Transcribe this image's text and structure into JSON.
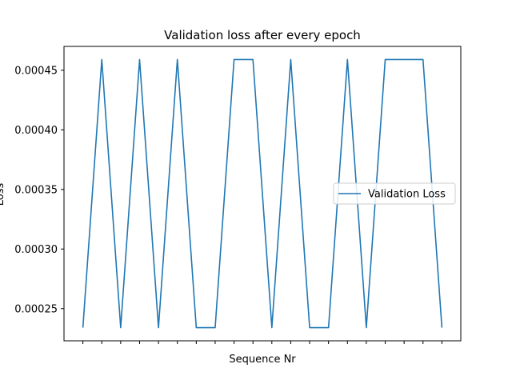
{
  "chart_data": {
    "type": "line",
    "title": "Validation loss after every epoch",
    "xlabel": "Sequence Nr",
    "ylabel": "Loss",
    "x": [
      0,
      1,
      2,
      3,
      4,
      5,
      6,
      7,
      8,
      9,
      10,
      11,
      12,
      13,
      14,
      15,
      16,
      17,
      18,
      19
    ],
    "series": [
      {
        "name": "Validation Loss",
        "color": "#1f77b4",
        "values": [
          0.000234,
          0.000459,
          0.000234,
          0.000459,
          0.000234,
          0.000459,
          0.000234,
          0.000234,
          0.000459,
          0.000459,
          0.000234,
          0.000459,
          0.000234,
          0.000234,
          0.000459,
          0.000234,
          0.000459,
          0.000459,
          0.000459,
          0.000234
        ]
      }
    ],
    "xlim": [
      -1,
      20
    ],
    "ylim": [
      0.000223,
      0.00047
    ],
    "yticks": [
      0.00025,
      0.0003,
      0.00035,
      0.0004,
      0.00045
    ],
    "ytick_labels": [
      "0.00025",
      "0.00030",
      "0.00035",
      "0.00040",
      "0.00045"
    ],
    "xtick_labels_visible": false,
    "grid": false,
    "legend_position": "center-right"
  }
}
